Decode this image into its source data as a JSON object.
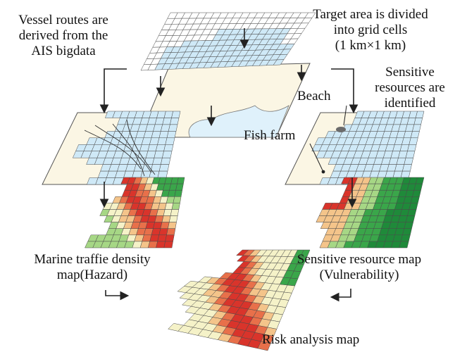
{
  "labels": {
    "vessel_routes": [
      "Vessel routes are",
      "derived from the",
      "AIS bigdata"
    ],
    "target_area": [
      "Target area is divided",
      "into grid cells",
      "(1 km×1 km)"
    ],
    "sensitive_resources": [
      "Sensitive",
      "resources are",
      "identified"
    ],
    "beach": "Beach",
    "fish_farm": "Fish farm",
    "traffic_map": [
      "Marine traffie density",
      "map(Hazard)"
    ],
    "resource_map": [
      "Sensitive resource map",
      "(Vulnerability)"
    ],
    "risk_map": "Risk analysis map"
  },
  "colors": {
    "grid_line": "#4a4a4a",
    "grid_cell_blue": "#cfe9f7",
    "land": "#fbf6e4",
    "sea": "#dff1fb",
    "high": "#d9342b",
    "medium_high": "#e8704a",
    "medium": "#f4c48a",
    "low": "#f5f2c8",
    "low_green": "#a6d785",
    "green": "#3aa64a",
    "dark_green": "#1f8a3a",
    "arrow": "#222222"
  }
}
